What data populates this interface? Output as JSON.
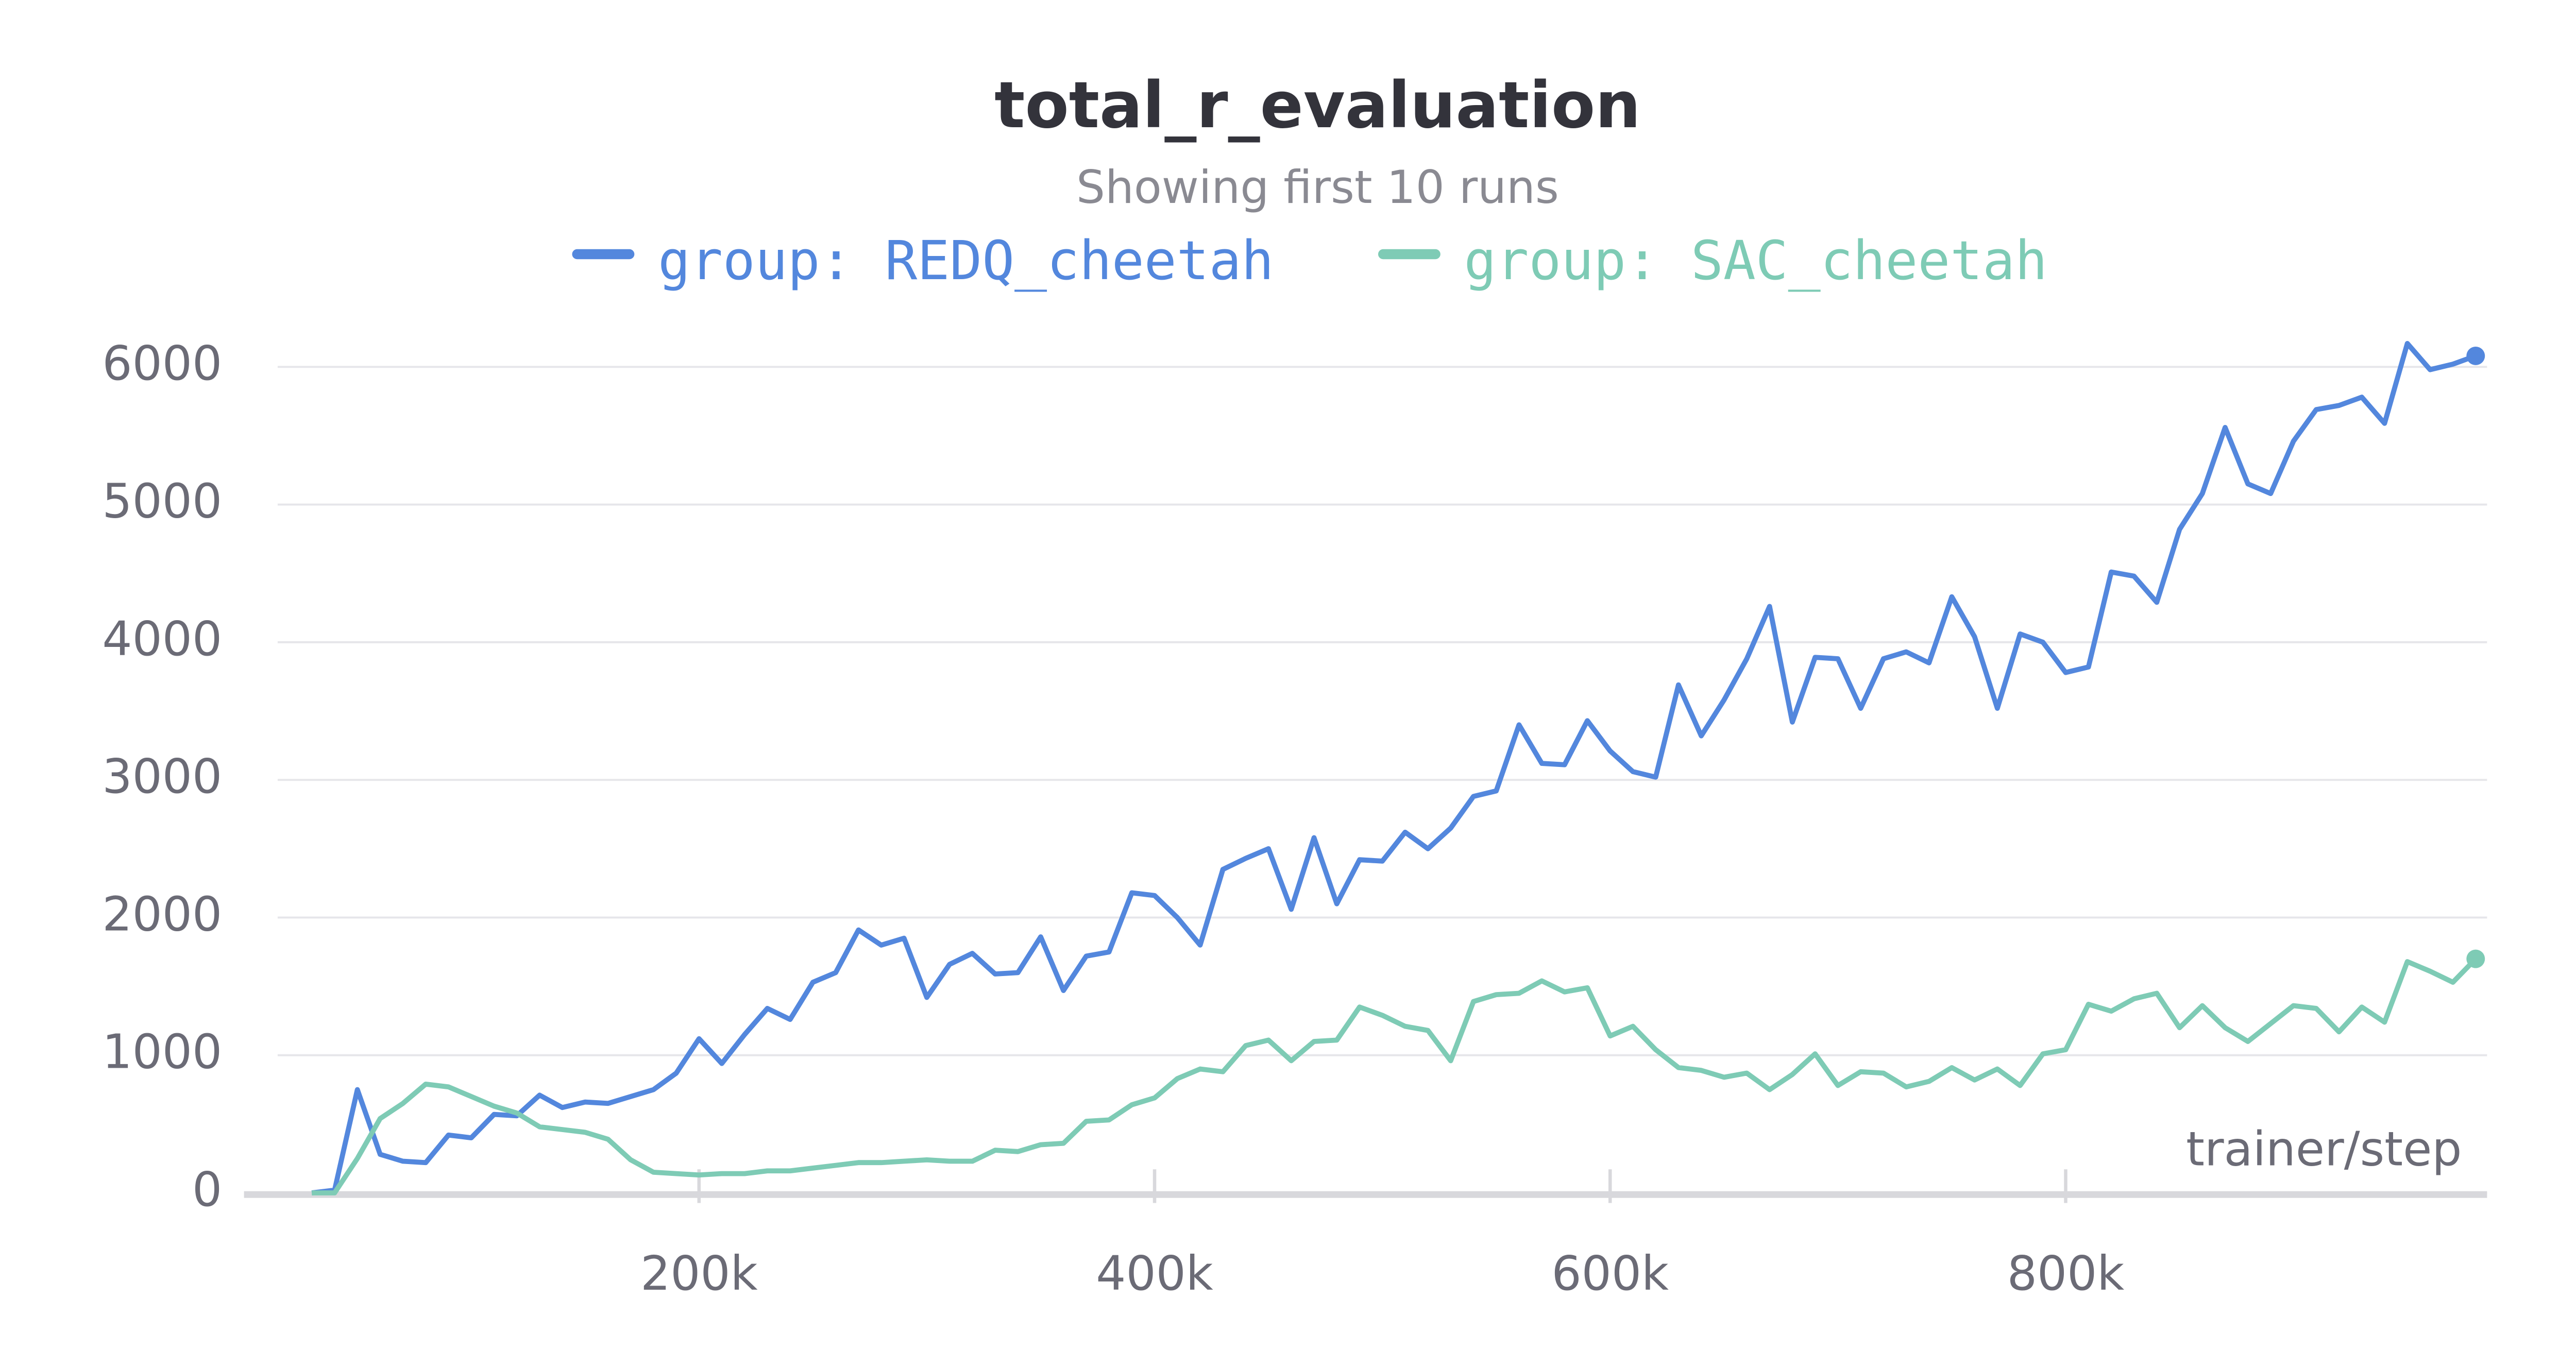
{
  "chart_data": {
    "type": "line",
    "title": "total_r_evaluation",
    "subtitle": "Showing first 10 runs",
    "x_label": "trainer/step",
    "x": [
      30000,
      40000,
      50000,
      60000,
      70000,
      80000,
      90000,
      100000,
      110000,
      120000,
      130000,
      140000,
      150000,
      160000,
      170000,
      180000,
      190000,
      200000,
      210000,
      220000,
      230000,
      240000,
      250000,
      260000,
      270000,
      280000,
      290000,
      300000,
      310000,
      320000,
      330000,
      340000,
      350000,
      360000,
      370000,
      380000,
      390000,
      400000,
      410000,
      420000,
      430000,
      440000,
      450000,
      460000,
      470000,
      480000,
      490000,
      500000,
      510000,
      520000,
      530000,
      540000,
      550000,
      560000,
      570000,
      580000,
      590000,
      600000,
      610000,
      620000,
      630000,
      640000,
      650000,
      660000,
      670000,
      680000,
      690000,
      700000,
      710000,
      720000,
      730000,
      740000,
      750000,
      760000,
      770000,
      780000,
      790000,
      800000,
      810000,
      820000,
      830000,
      840000,
      850000,
      860000,
      870000,
      880000,
      890000,
      900000,
      910000,
      920000,
      930000,
      940000,
      950000,
      960000,
      970000,
      980000
    ],
    "series": [
      {
        "name": "group: REDQ_cheetah",
        "color": "#5387dd",
        "values": [
          0,
          20,
          750,
          280,
          230,
          220,
          420,
          400,
          570,
          560,
          710,
          620,
          660,
          650,
          700,
          750,
          870,
          1120,
          940,
          1150,
          1340,
          1260,
          1530,
          1600,
          1910,
          1800,
          1850,
          1420,
          1660,
          1740,
          1590,
          1600,
          1860,
          1470,
          1720,
          1750,
          2180,
          2160,
          2000,
          1800,
          2350,
          2430,
          2500,
          2060,
          2580,
          2100,
          2420,
          2410,
          2620,
          2500,
          2650,
          2880,
          2920,
          3400,
          3120,
          3110,
          3430,
          3210,
          3060,
          3020,
          3690,
          3320,
          3580,
          3880,
          4260,
          3420,
          3890,
          3880,
          3520,
          3880,
          3930,
          3850,
          4330,
          4040,
          3520,
          4060,
          4000,
          3780,
          3820,
          4510,
          4480,
          4290,
          4820,
          5080,
          5560,
          5150,
          5080,
          5460,
          5690,
          5720,
          5780,
          5590,
          6170,
          5980,
          6020,
          6080
        ]
      },
      {
        "name": "group: SAC_cheetah",
        "color": "#7ecbb5",
        "values": [
          0,
          0,
          250,
          540,
          650,
          790,
          770,
          700,
          630,
          580,
          480,
          460,
          440,
          390,
          240,
          150,
          140,
          130,
          140,
          140,
          160,
          160,
          180,
          200,
          220,
          220,
          230,
          240,
          230,
          230,
          310,
          300,
          350,
          360,
          520,
          530,
          640,
          690,
          830,
          900,
          880,
          1070,
          1110,
          960,
          1100,
          1110,
          1350,
          1290,
          1210,
          1180,
          960,
          1390,
          1440,
          1450,
          1540,
          1460,
          1490,
          1140,
          1210,
          1040,
          910,
          890,
          840,
          870,
          750,
          860,
          1010,
          780,
          880,
          870,
          770,
          810,
          910,
          820,
          900,
          780,
          1010,
          1040,
          1370,
          1320,
          1410,
          1450,
          1200,
          1360,
          1200,
          1100,
          1230,
          1360,
          1340,
          1170,
          1350,
          1240,
          1680,
          1610,
          1530,
          1700
        ]
      }
    ],
    "xlim": [
      15000,
      985000
    ],
    "xticks": [
      {
        "value": 200000,
        "label": "200k"
      },
      {
        "value": 400000,
        "label": "400k"
      },
      {
        "value": 600000,
        "label": "600k"
      },
      {
        "value": 800000,
        "label": "800k"
      }
    ],
    "ylim": [
      0,
      6000
    ],
    "yticks": [
      0,
      1000,
      2000,
      3000,
      4000,
      5000,
      6000
    ],
    "grid": true
  }
}
